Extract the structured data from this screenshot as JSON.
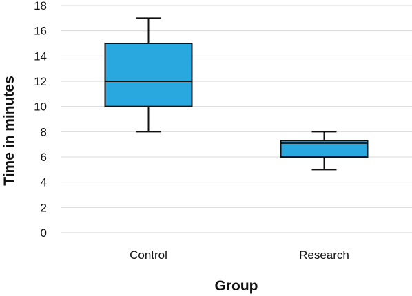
{
  "chart_data": {
    "type": "box",
    "title": "",
    "xlabel": "Group",
    "ylabel": "Time in minutes",
    "ylim": [
      0,
      18
    ],
    "yticks": [
      0,
      2,
      4,
      6,
      8,
      10,
      12,
      14,
      16,
      18
    ],
    "grid": true,
    "legend": "none",
    "colors": {
      "box_fill": "#29a8e0",
      "box_stroke": "#111111",
      "grid": "#d9d9d9"
    },
    "categories": [
      "Control",
      "Research"
    ],
    "boxes": [
      {
        "category": "Control",
        "min": 8,
        "q1": 10,
        "median": 12,
        "q3": 15,
        "max": 17
      },
      {
        "category": "Research",
        "min": 5,
        "q1": 6,
        "median": 7.1,
        "q3": 7.3,
        "max": 8
      }
    ]
  }
}
